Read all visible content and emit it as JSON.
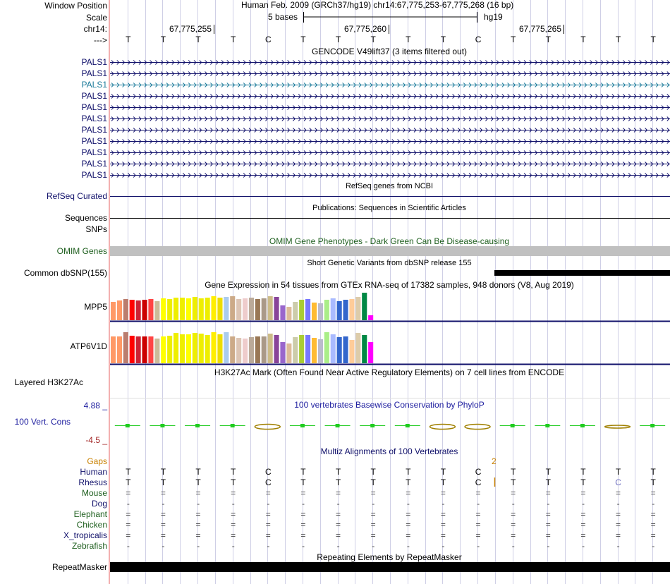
{
  "labels": {
    "window_position": "Window Position",
    "scale": "Scale",
    "chrom": "chr14:",
    "strand_arrow": "--->",
    "gencode_rows": [
      "PALS1",
      "PALS1",
      "PALS1",
      "PALS1",
      "PALS1",
      "PALS1",
      "PALS1",
      "PALS1",
      "PALS1",
      "PALS1",
      "PALS1"
    ],
    "refseq": "RefSeq Curated",
    "sequences": "Sequences",
    "snps": "SNPs",
    "omim": "OMIM Genes",
    "common_dbsnp": "Common dbSNP(155)",
    "mpp5": "MPP5",
    "atp6v1d": "ATP6V1D",
    "h3k27ac": "Layered H3K27Ac",
    "phylop_max": "4.88 _",
    "cons": "100 Vert. Cons",
    "phylop_min": "-4.5 _",
    "gaps": "Gaps",
    "species": [
      "Human",
      "Rhesus",
      "Mouse",
      "Dog",
      "Elephant",
      "Chicken",
      "X_tropicalis",
      "Zebrafish"
    ],
    "repeatmasker": "RepeatMasker"
  },
  "header": {
    "assembly_position": "Human Feb. 2009 (GRCh37/hg19)   chr14:67,775,253-67,775,268 (16 bp)",
    "scale_bases": "5 bases",
    "scale_db": "hg19",
    "coord_ticks": [
      "67,775,255",
      "67,775,260",
      "67,775,265"
    ]
  },
  "sequence": [
    "T",
    "T",
    "T",
    "T",
    "C",
    "T",
    "T",
    "T",
    "T",
    "T",
    "C",
    "T",
    "T",
    "T",
    "T",
    "T"
  ],
  "tracks": {
    "gencode_title": "GENCODE V49lift37 (3 items filtered out)",
    "refseq_title": "RefSeq genes from NCBI",
    "publications_title": "Publications: Sequences in Scientific Articles",
    "omim_title": "OMIM Gene Phenotypes - Dark Green Can Be Disease-causing",
    "dbsnp_title": "Short Genetic Variants from dbSNP release 155",
    "gtex_title": "Gene Expression in 54 tissues from GTEx RNA-seq of 17382 samples, 948 donors (V8, Aug 2019)",
    "h3k27ac_title": "H3K27Ac Mark (Often Found Near Active Regulatory Elements) on 7 cell lines from ENCODE",
    "phylop_title": "100 vertebrates Basewise Conservation by PhyloP",
    "multiz_title": "Multiz Alignments of 100 Vertebrates",
    "gap_count": "2",
    "repeatmasker_title": "Repeating Elements by RepeatMasker"
  },
  "alignment": {
    "Human": [
      "T",
      "T",
      "T",
      "T",
      "C",
      "T",
      "T",
      "T",
      "T",
      "T",
      "C",
      "T",
      "T",
      "T",
      "T",
      "T"
    ],
    "Rhesus": [
      "T",
      "T",
      "T",
      "T",
      "C",
      "T",
      "T",
      "T",
      "T",
      "T",
      "C",
      "T",
      "T",
      "T",
      "C",
      "T"
    ],
    "Mouse": [
      "=",
      "=",
      "=",
      "=",
      "=",
      "=",
      "=",
      "=",
      "=",
      "=",
      "=",
      "=",
      "=",
      "=",
      "=",
      "="
    ],
    "Dog": [
      "-",
      "-",
      "-",
      "-",
      "-",
      "-",
      "-",
      "-",
      "-",
      "-",
      "-",
      "-",
      "-",
      "-",
      "-",
      "-"
    ],
    "Elephant": [
      "=",
      "=",
      "=",
      "=",
      "=",
      "=",
      "=",
      "=",
      "=",
      "=",
      "=",
      "=",
      "=",
      "=",
      "=",
      "="
    ],
    "Chicken": [
      "=",
      "=",
      "=",
      "=",
      "=",
      "=",
      "=",
      "=",
      "=",
      "=",
      "=",
      "=",
      "=",
      "=",
      "=",
      "="
    ],
    "X_tropicalis": [
      "=",
      "=",
      "=",
      "=",
      "=",
      "=",
      "=",
      "=",
      "=",
      "=",
      "=",
      "=",
      "=",
      "=",
      "=",
      "="
    ],
    "Zebrafish": [
      "-",
      "-",
      "-",
      "-",
      "-",
      "-",
      "-",
      "-",
      "-",
      "-",
      "-",
      "-",
      "-",
      "-",
      "-",
      "-"
    ]
  },
  "gtex": {
    "tissue_colors": [
      "#ff9966",
      "#ff9966",
      "#bb7d6e",
      "#ff0000",
      "#cc2233",
      "#cc0000",
      "#ff4444",
      "#ccbb99",
      "#ffff00",
      "#eeee00",
      "#eeee00",
      "#eeee00",
      "#ffff00",
      "#eeee00",
      "#eeee00",
      "#eeee00",
      "#ffee00",
      "#eedd00",
      "#aaccee",
      "#ccaa88",
      "#ddc5b5",
      "#eecccc",
      "#bbaa99",
      "#997755",
      "#aa9988",
      "#ccbb88",
      "#884499",
      "#9966cc",
      "#ddbb99",
      "#ccccaa",
      "#aacc33",
      "#7777ff",
      "#ffbb33",
      "#bbbbcc",
      "#aaee88",
      "#aabbff",
      "#3366cc",
      "#3366cc",
      "#ffcc99",
      "#ddccaa",
      "#008844",
      "#ff00ff"
    ],
    "mpp5": [
      26,
      28,
      30,
      29,
      28,
      29,
      30,
      27,
      31,
      30,
      32,
      32,
      31,
      33,
      31,
      32,
      34,
      32,
      33,
      34,
      30,
      31,
      32,
      30,
      31,
      34,
      33,
      21,
      19,
      26,
      29,
      30,
      25,
      24,
      29,
      31,
      27,
      29,
      30,
      33,
      39,
      7
    ],
    "atp6v1d": [
      38,
      38,
      44,
      39,
      38,
      38,
      38,
      35,
      38,
      39,
      43,
      41,
      41,
      43,
      42,
      40,
      44,
      41,
      44,
      38,
      36,
      35,
      37,
      38,
      38,
      42,
      40,
      30,
      28,
      37,
      40,
      40,
      36,
      34,
      44,
      41,
      37,
      38,
      33,
      43,
      40,
      30
    ]
  },
  "phylop": [
    0.0,
    0.0,
    0.0,
    0.0,
    -0.35,
    0.0,
    0.0,
    0.0,
    0.0,
    -0.35,
    -0.35,
    0.0,
    0.0,
    0.0,
    -0.22,
    0.0
  ],
  "colors": {
    "nav_blue": "#10106a",
    "omim_green": "#206020",
    "phylop_blue": "#2020a0",
    "gaps_orange": "#c88000",
    "phylop_pos": "#20cc20",
    "phylop_neg": "#a08000"
  }
}
